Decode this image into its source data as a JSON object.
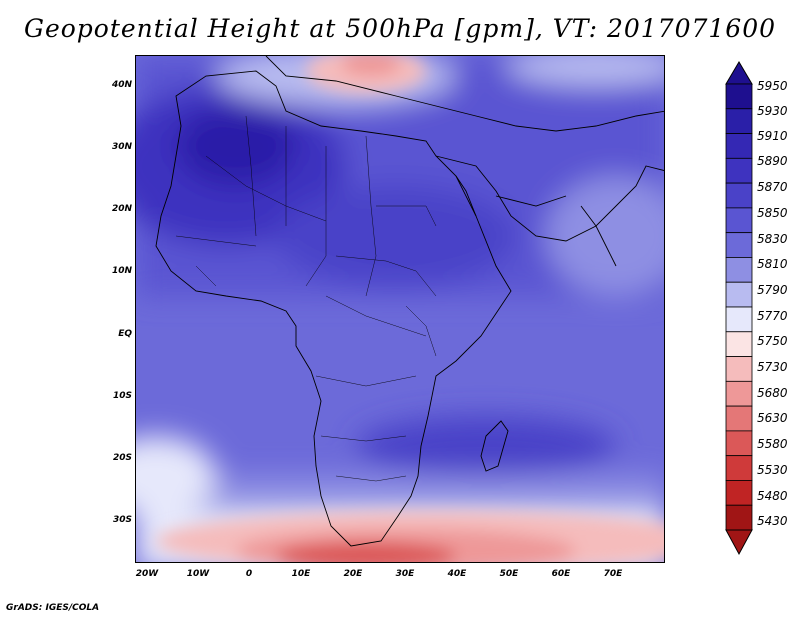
{
  "title": "Geopotential Height at 500hPa [gpm], VT: 2017071600",
  "footer": "GrADS: IGES/COLA",
  "lat_labels": [
    "40N",
    "30N",
    "20N",
    "10N",
    "EQ",
    "10S",
    "20S",
    "30S"
  ],
  "lon_labels": [
    "20W",
    "10W",
    "0",
    "10E",
    "20E",
    "30E",
    "40E",
    "50E",
    "60E",
    "70E"
  ],
  "colorbar": {
    "levels": [
      "5950",
      "5930",
      "5910",
      "5890",
      "5870",
      "5850",
      "5830",
      "5810",
      "5790",
      "5770",
      "5750",
      "5730",
      "5680",
      "5630",
      "5580",
      "5530",
      "5480",
      "5430"
    ],
    "colors": [
      "#1e0f8f",
      "#2a1fa8",
      "#3428b4",
      "#3e33bf",
      "#4a42c8",
      "#5a55d2",
      "#6c6ad9",
      "#8e8fe3",
      "#b8bbf0",
      "#e6e8fb",
      "#fbe4e4",
      "#f5bcbc",
      "#ee9898",
      "#e47777",
      "#db5858",
      "#cf3a3a",
      "#c02424",
      "#a01515"
    ]
  },
  "map": {
    "region": "Africa",
    "lat_range": [
      "35S",
      "45N"
    ],
    "lon_range": [
      "22W",
      "80E"
    ]
  }
}
